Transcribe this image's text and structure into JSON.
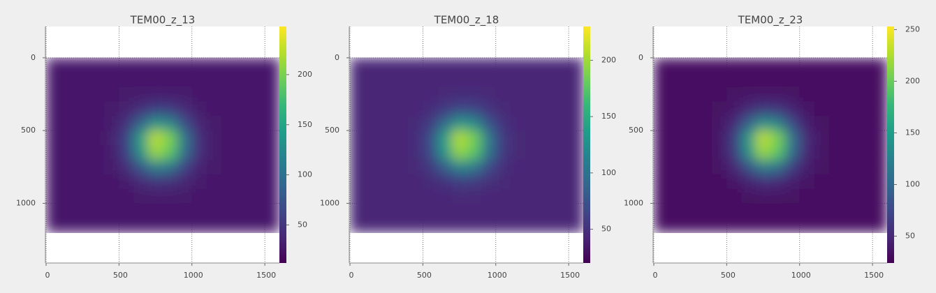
{
  "chart_data": [
    {
      "type": "heatmap",
      "title": "TEM00_z_13",
      "colormap": "viridis",
      "x": [
        50,
        150,
        250,
        350,
        450,
        550,
        650,
        750,
        850,
        950,
        1050,
        1150,
        1250,
        1350,
        1450,
        1550
      ],
      "y": [
        50,
        150,
        250,
        350,
        450,
        550,
        650,
        750,
        850,
        950,
        1050,
        1150
      ],
      "values": [
        [
          28,
          28,
          28,
          28,
          28,
          28,
          28,
          28,
          28,
          28,
          28,
          28,
          28,
          28,
          28,
          28
        ],
        [
          28,
          28,
          28,
          28,
          28,
          28,
          28,
          28,
          28,
          28,
          28,
          28,
          28,
          28,
          28,
          28
        ],
        [
          28,
          28,
          28,
          28,
          28,
          29,
          30,
          32,
          31,
          30,
          28,
          28,
          28,
          28,
          28,
          28
        ],
        [
          28,
          28,
          28,
          28,
          29,
          33,
          44,
          56,
          53,
          39,
          30,
          28,
          28,
          28,
          28,
          28
        ],
        [
          28,
          28,
          28,
          28,
          31,
          45,
          88,
          133,
          120,
          68,
          37,
          29,
          28,
          28,
          28,
          28
        ],
        [
          28,
          28,
          28,
          28,
          33,
          60,
          141,
          225,
          200,
          103,
          44,
          30,
          28,
          28,
          28,
          28
        ],
        [
          28,
          28,
          28,
          28,
          32,
          58,
          133,
          212,
          188,
          98,
          43,
          30,
          28,
          28,
          28,
          28
        ],
        [
          28,
          28,
          28,
          28,
          30,
          42,
          77,
          114,
          103,
          60,
          35,
          29,
          28,
          28,
          28,
          28
        ],
        [
          28,
          28,
          28,
          28,
          28,
          31,
          39,
          48,
          45,
          36,
          30,
          28,
          28,
          28,
          28,
          28
        ],
        [
          28,
          28,
          28,
          28,
          28,
          28,
          29,
          30,
          30,
          29,
          28,
          28,
          28,
          28,
          28,
          28
        ],
        [
          28,
          28,
          28,
          28,
          28,
          28,
          28,
          28,
          28,
          28,
          28,
          28,
          28,
          28,
          28,
          28
        ],
        [
          28,
          28,
          28,
          28,
          28,
          28,
          28,
          28,
          28,
          28,
          28,
          28,
          28,
          28,
          28,
          28
        ]
      ],
      "xlim": [
        0,
        1600
      ],
      "ylim": [
        1410,
        -215
      ],
      "xticks": [
        0,
        500,
        1000,
        1500
      ],
      "yticks": [
        0,
        500,
        1000
      ],
      "clim": [
        12,
        248
      ],
      "cticks": [
        50,
        100,
        150,
        200
      ],
      "grid": true
    },
    {
      "type": "heatmap",
      "title": "TEM00_z_18",
      "colormap": "viridis",
      "x": [
        50,
        150,
        250,
        350,
        450,
        550,
        650,
        750,
        850,
        950,
        1050,
        1150,
        1250,
        1350,
        1450,
        1550
      ],
      "y": [
        50,
        150,
        250,
        350,
        450,
        550,
        650,
        750,
        850,
        950,
        1050,
        1150
      ],
      "values": [
        [
          42,
          42,
          42,
          42,
          42,
          42,
          42,
          42,
          42,
          42,
          42,
          42,
          42,
          42,
          42,
          42
        ],
        [
          42,
          42,
          42,
          42,
          42,
          42,
          42,
          42,
          42,
          42,
          42,
          42,
          42,
          42,
          42,
          42
        ],
        [
          42,
          42,
          42,
          42,
          42,
          43,
          44,
          45,
          45,
          44,
          42,
          42,
          42,
          42,
          42,
          42
        ],
        [
          42,
          42,
          42,
          42,
          43,
          46,
          55,
          65,
          63,
          51,
          44,
          42,
          42,
          42,
          42,
          42
        ],
        [
          42,
          42,
          42,
          42,
          45,
          56,
          92,
          130,
          119,
          75,
          50,
          43,
          42,
          42,
          42,
          42
        ],
        [
          42,
          42,
          42,
          42,
          46,
          69,
          137,
          207,
          186,
          105,
          55,
          44,
          42,
          42,
          42,
          42
        ],
        [
          42,
          42,
          42,
          42,
          45,
          67,
          130,
          196,
          176,
          101,
          55,
          44,
          42,
          42,
          42,
          42
        ],
        [
          42,
          42,
          42,
          42,
          44,
          54,
          83,
          114,
          105,
          69,
          48,
          43,
          42,
          42,
          42,
          42
        ],
        [
          42,
          42,
          42,
          42,
          42,
          45,
          51,
          59,
          56,
          49,
          44,
          42,
          42,
          42,
          42,
          42
        ],
        [
          42,
          42,
          42,
          42,
          42,
          42,
          43,
          44,
          44,
          43,
          42,
          42,
          42,
          42,
          42,
          42
        ],
        [
          42,
          42,
          42,
          42,
          42,
          42,
          42,
          42,
          42,
          42,
          42,
          42,
          42,
          42,
          42,
          42
        ],
        [
          42,
          42,
          42,
          42,
          42,
          42,
          42,
          42,
          42,
          42,
          42,
          42,
          42,
          42,
          42,
          42
        ]
      ],
      "xlim": [
        0,
        1600
      ],
      "ylim": [
        1410,
        -215
      ],
      "xticks": [
        0,
        500,
        1000,
        1500
      ],
      "yticks": [
        0,
        500,
        1000
      ],
      "clim": [
        20,
        230
      ],
      "cticks": [
        50,
        100,
        150,
        200
      ],
      "grid": true
    },
    {
      "type": "heatmap",
      "title": "TEM00_z_23",
      "colormap": "viridis",
      "x": [
        50,
        150,
        250,
        350,
        450,
        550,
        650,
        750,
        850,
        950,
        1050,
        1150,
        1250,
        1350,
        1450,
        1550
      ],
      "y": [
        50,
        150,
        250,
        350,
        450,
        550,
        650,
        750,
        850,
        950,
        1050,
        1150
      ],
      "values": [
        [
          34,
          34,
          34,
          34,
          34,
          34,
          34,
          34,
          34,
          34,
          34,
          34,
          34,
          34,
          34,
          34
        ],
        [
          34,
          34,
          34,
          34,
          34,
          34,
          34,
          34,
          34,
          34,
          34,
          34,
          34,
          34,
          34,
          34
        ],
        [
          34,
          34,
          34,
          34,
          34,
          35,
          36,
          38,
          37,
          36,
          34,
          34,
          34,
          34,
          34,
          34
        ],
        [
          34,
          34,
          34,
          34,
          35,
          39,
          50,
          62,
          59,
          45,
          36,
          34,
          34,
          34,
          34,
          34
        ],
        [
          34,
          34,
          34,
          34,
          37,
          51,
          94,
          139,
          126,
          74,
          43,
          35,
          34,
          34,
          34,
          34
        ],
        [
          34,
          34,
          34,
          34,
          39,
          66,
          147,
          231,
          206,
          109,
          50,
          36,
          34,
          34,
          34,
          34
        ],
        [
          34,
          34,
          34,
          34,
          38,
          64,
          139,
          218,
          194,
          104,
          49,
          36,
          34,
          34,
          34,
          34
        ],
        [
          34,
          34,
          34,
          34,
          36,
          48,
          83,
          120,
          109,
          66,
          41,
          35,
          34,
          34,
          34,
          34
        ],
        [
          34,
          34,
          34,
          34,
          34,
          37,
          45,
          54,
          51,
          42,
          36,
          34,
          34,
          34,
          34,
          34
        ],
        [
          34,
          34,
          34,
          34,
          34,
          34,
          35,
          36,
          36,
          35,
          34,
          34,
          34,
          34,
          34,
          34
        ],
        [
          34,
          34,
          34,
          34,
          34,
          34,
          34,
          34,
          34,
          34,
          34,
          34,
          34,
          34,
          34,
          34
        ],
        [
          34,
          34,
          34,
          34,
          34,
          34,
          34,
          34,
          34,
          34,
          34,
          34,
          34,
          34,
          34,
          34
        ]
      ],
      "xlim": [
        0,
        1600
      ],
      "ylim": [
        1410,
        -215
      ],
      "xticks": [
        0,
        500,
        1000,
        1500
      ],
      "yticks": [
        0,
        500,
        1000
      ],
      "clim": [
        24,
        253
      ],
      "cticks": [
        50,
        100,
        150,
        200,
        250
      ],
      "grid": true
    }
  ]
}
